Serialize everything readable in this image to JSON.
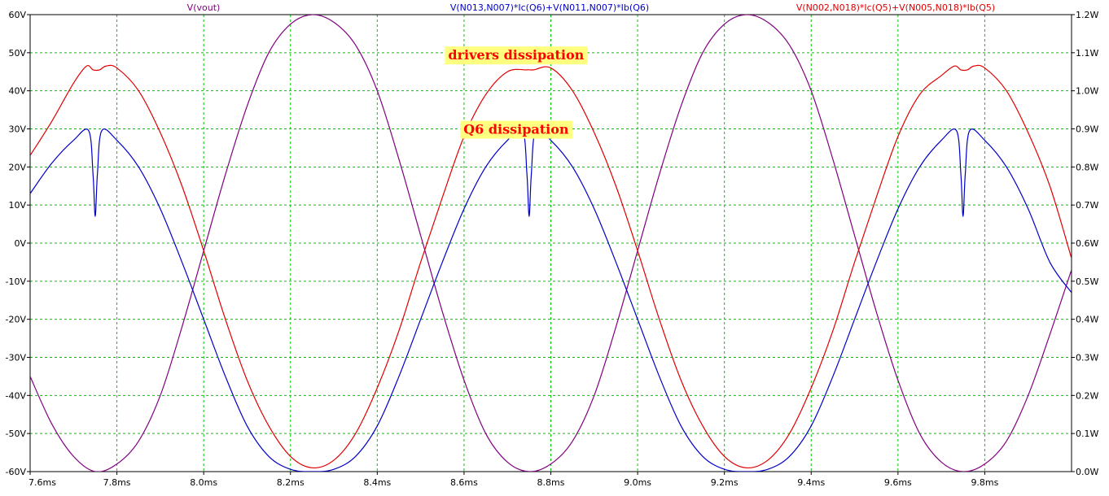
{
  "chart_data": {
    "type": "line",
    "x_tick_labels": [
      "7.6ms",
      "7.8ms",
      "8.0ms",
      "8.2ms",
      "8.4ms",
      "8.6ms",
      "8.8ms",
      "9.0ms",
      "9.2ms",
      "9.4ms",
      "9.6ms",
      "9.8ms"
    ],
    "x_ticks_ms": [
      7.6,
      7.8,
      8.0,
      8.2,
      8.4,
      8.6,
      8.8,
      9.0,
      9.2,
      9.4,
      9.6,
      9.8
    ],
    "xlim_ms": [
      7.6,
      10.0
    ],
    "y_left": {
      "unit": "V",
      "ylim": [
        -60,
        60
      ],
      "ticks": [
        60,
        50,
        40,
        30,
        20,
        10,
        0,
        -10,
        -20,
        -30,
        -40,
        -50,
        -60
      ],
      "tick_labels": [
        "60V",
        "50V",
        "40V",
        "30V",
        "20V",
        "10V",
        "0V",
        "-10V",
        "-20V",
        "-30V",
        "-40V",
        "-50V",
        "-60V"
      ]
    },
    "y_right": {
      "unit": "W",
      "ylim": [
        0,
        1.2
      ],
      "ticks": [
        1.2,
        1.1,
        1.0,
        0.9,
        0.8,
        0.7,
        0.6,
        0.5,
        0.4,
        0.3,
        0.2,
        0.1,
        0.0
      ],
      "tick_labels": [
        "1.2W",
        "1.1W",
        "1.0W",
        "0.9W",
        "0.8W",
        "0.7W",
        "0.6W",
        "0.5W",
        "0.4W",
        "0.3W",
        "0.2W",
        "0.1W",
        "0.0W"
      ]
    },
    "grid": true,
    "series": [
      {
        "name": "V(vout)",
        "axis": "left",
        "color": "#800080",
        "points": [
          [
            7.6,
            -35
          ],
          [
            7.65,
            -47.5
          ],
          [
            7.7,
            -56
          ],
          [
            7.75,
            -60
          ],
          [
            7.8,
            -58
          ],
          [
            7.85,
            -52
          ],
          [
            7.9,
            -40
          ],
          [
            7.95,
            -22
          ],
          [
            8.0,
            -2
          ],
          [
            8.05,
            18
          ],
          [
            8.1,
            36
          ],
          [
            8.15,
            50
          ],
          [
            8.2,
            57.5
          ],
          [
            8.25,
            60
          ],
          [
            8.3,
            58
          ],
          [
            8.35,
            52
          ],
          [
            8.4,
            40
          ],
          [
            8.45,
            22
          ],
          [
            8.5,
            2
          ],
          [
            8.55,
            -18
          ],
          [
            8.6,
            -36
          ],
          [
            8.65,
            -50
          ],
          [
            8.7,
            -57.5
          ],
          [
            8.75,
            -60
          ],
          [
            8.8,
            -58
          ],
          [
            8.85,
            -52
          ],
          [
            8.9,
            -40
          ],
          [
            8.95,
            -22
          ],
          [
            9.0,
            -2
          ],
          [
            9.05,
            18
          ],
          [
            9.1,
            36
          ],
          [
            9.15,
            50
          ],
          [
            9.2,
            57.5
          ],
          [
            9.25,
            60
          ],
          [
            9.3,
            58
          ],
          [
            9.35,
            52
          ],
          [
            9.4,
            40
          ],
          [
            9.45,
            22
          ],
          [
            9.5,
            2
          ],
          [
            9.55,
            -18
          ],
          [
            9.6,
            -36
          ],
          [
            9.65,
            -50
          ],
          [
            9.7,
            -57.5
          ],
          [
            9.75,
            -60
          ],
          [
            9.8,
            -58
          ],
          [
            9.85,
            -52
          ],
          [
            9.9,
            -40
          ],
          [
            9.95,
            -24
          ],
          [
            10.0,
            -7
          ]
        ]
      },
      {
        "name": "V(N013,N007)*Ic(Q6)+V(N011,N007)*Ib(Q6)",
        "axis": "right",
        "color": "#0000c8",
        "points": [
          [
            7.6,
            0.73
          ],
          [
            7.65,
            0.81
          ],
          [
            7.7,
            0.87
          ],
          [
            7.735,
            0.895
          ],
          [
            7.745,
            0.78
          ],
          [
            7.75,
            0.67
          ],
          [
            7.755,
            0.78
          ],
          [
            7.765,
            0.895
          ],
          [
            7.8,
            0.87
          ],
          [
            7.85,
            0.8
          ],
          [
            7.9,
            0.69
          ],
          [
            7.95,
            0.55
          ],
          [
            8.0,
            0.4
          ],
          [
            8.05,
            0.25
          ],
          [
            8.1,
            0.12
          ],
          [
            8.15,
            0.04
          ],
          [
            8.2,
            0.006
          ],
          [
            8.25,
            0.0
          ],
          [
            8.3,
            0.006
          ],
          [
            8.35,
            0.04
          ],
          [
            8.4,
            0.12
          ],
          [
            8.45,
            0.25
          ],
          [
            8.5,
            0.4
          ],
          [
            8.55,
            0.55
          ],
          [
            8.6,
            0.69
          ],
          [
            8.65,
            0.8
          ],
          [
            8.7,
            0.87
          ],
          [
            8.735,
            0.895
          ],
          [
            8.745,
            0.78
          ],
          [
            8.75,
            0.67
          ],
          [
            8.755,
            0.78
          ],
          [
            8.765,
            0.895
          ],
          [
            8.8,
            0.87
          ],
          [
            8.85,
            0.8
          ],
          [
            8.9,
            0.69
          ],
          [
            8.95,
            0.55
          ],
          [
            9.0,
            0.4
          ],
          [
            9.05,
            0.25
          ],
          [
            9.1,
            0.12
          ],
          [
            9.15,
            0.04
          ],
          [
            9.2,
            0.006
          ],
          [
            9.25,
            0.0
          ],
          [
            9.3,
            0.006
          ],
          [
            9.35,
            0.04
          ],
          [
            9.4,
            0.12
          ],
          [
            9.45,
            0.25
          ],
          [
            9.5,
            0.4
          ],
          [
            9.55,
            0.55
          ],
          [
            9.6,
            0.69
          ],
          [
            9.65,
            0.8
          ],
          [
            9.7,
            0.87
          ],
          [
            9.735,
            0.895
          ],
          [
            9.745,
            0.78
          ],
          [
            9.75,
            0.67
          ],
          [
            9.755,
            0.78
          ],
          [
            9.765,
            0.895
          ],
          [
            9.8,
            0.87
          ],
          [
            9.85,
            0.8
          ],
          [
            9.9,
            0.69
          ],
          [
            9.95,
            0.55
          ],
          [
            10.0,
            0.47
          ]
        ]
      },
      {
        "name": "V(N002,N018)*Ic(Q5)+V(N005,N018)*Ib(Q5)",
        "axis": "right",
        "color": "#e00000",
        "points": [
          [
            7.6,
            0.83
          ],
          [
            7.65,
            0.92
          ],
          [
            7.7,
            1.02
          ],
          [
            7.73,
            1.065
          ],
          [
            7.745,
            1.055
          ],
          [
            7.76,
            1.055
          ],
          [
            7.775,
            1.065
          ],
          [
            7.8,
            1.06
          ],
          [
            7.85,
            1.0
          ],
          [
            7.9,
            0.89
          ],
          [
            7.95,
            0.75
          ],
          [
            8.0,
            0.58
          ],
          [
            8.05,
            0.4
          ],
          [
            8.1,
            0.24
          ],
          [
            8.15,
            0.12
          ],
          [
            8.2,
            0.04
          ],
          [
            8.25,
            0.01
          ],
          [
            8.3,
            0.03
          ],
          [
            8.35,
            0.1
          ],
          [
            8.4,
            0.22
          ],
          [
            8.45,
            0.37
          ],
          [
            8.5,
            0.55
          ],
          [
            8.55,
            0.72
          ],
          [
            8.6,
            0.88
          ],
          [
            8.65,
            0.99
          ],
          [
            8.7,
            1.05
          ],
          [
            8.745,
            1.055
          ],
          [
            8.76,
            1.055
          ],
          [
            8.8,
            1.06
          ],
          [
            8.85,
            1.0
          ],
          [
            8.9,
            0.89
          ],
          [
            8.95,
            0.75
          ],
          [
            9.0,
            0.58
          ],
          [
            9.05,
            0.4
          ],
          [
            9.1,
            0.24
          ],
          [
            9.15,
            0.12
          ],
          [
            9.2,
            0.04
          ],
          [
            9.25,
            0.01
          ],
          [
            9.3,
            0.03
          ],
          [
            9.35,
            0.1
          ],
          [
            9.4,
            0.22
          ],
          [
            9.45,
            0.37
          ],
          [
            9.5,
            0.55
          ],
          [
            9.55,
            0.72
          ],
          [
            9.6,
            0.88
          ],
          [
            9.65,
            0.99
          ],
          [
            9.7,
            1.04
          ],
          [
            9.73,
            1.065
          ],
          [
            9.745,
            1.055
          ],
          [
            9.76,
            1.055
          ],
          [
            9.775,
            1.065
          ],
          [
            9.8,
            1.06
          ],
          [
            9.85,
            1.0
          ],
          [
            9.9,
            0.89
          ],
          [
            9.95,
            0.75
          ],
          [
            10.0,
            0.56
          ]
        ]
      }
    ],
    "annotations": [
      {
        "text": "drivers dissipation",
        "x": 8.72,
        "y_right": 1.095
      },
      {
        "text": "Q6 dissipation",
        "x": 8.72,
        "y_right": 0.9
      }
    ],
    "colors": {
      "background": "#ffffff",
      "grid": "#00c800",
      "axes": "#000000",
      "annotation_box": "#ffff80",
      "annotation_text": "#ff0000"
    }
  }
}
